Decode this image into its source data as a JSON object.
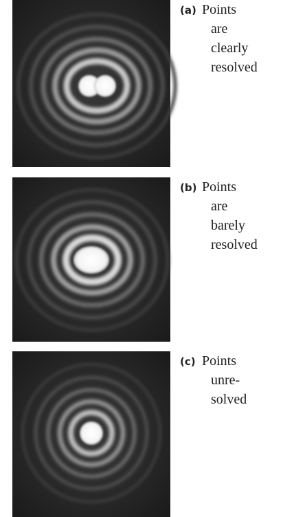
{
  "panels": [
    {
      "label": "(a)",
      "lines": [
        "Points",
        "are",
        "clearly",
        "resolved"
      ]
    },
    {
      "label": "(b)",
      "lines": [
        "Points",
        "are",
        "barely",
        "resolved"
      ]
    },
    {
      "label": "(c)",
      "lines": [
        "Points",
        "unre-",
        "solved"
      ]
    }
  ]
}
